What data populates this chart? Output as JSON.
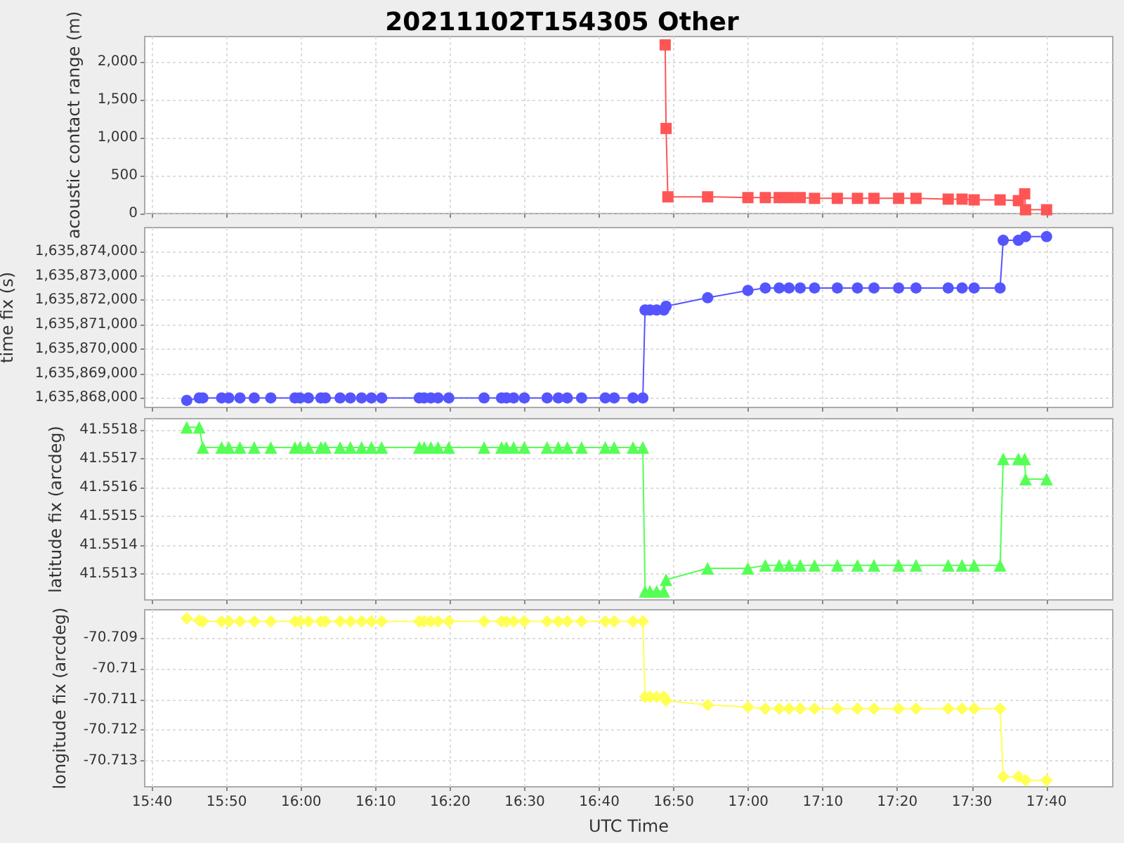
{
  "chart_data": [
    {
      "type": "line",
      "title": "20211102T154305 Other",
      "ylabel": "acoustic contact range (m)",
      "color": "#ff5555",
      "marker": "square",
      "grid": true,
      "tick_labels": "y",
      "x": [
        16.814,
        16.816,
        16.82,
        16.909,
        16.999,
        17.038,
        17.069,
        17.091,
        17.116,
        17.148,
        17.199,
        17.244,
        17.281,
        17.336,
        17.375,
        17.447,
        17.478,
        17.505,
        17.563,
        17.604,
        17.618,
        17.62,
        17.667
      ],
      "values": [
        2220,
        1120,
        220,
        220,
        210,
        210,
        210,
        210,
        210,
        200,
        200,
        200,
        200,
        200,
        200,
        190,
        190,
        180,
        180,
        170,
        260,
        50,
        50
      ],
      "xlim": [
        15.65,
        17.815
      ],
      "xticks": [
        15.6667,
        15.8333,
        16,
        16.1667,
        16.3333,
        16.5,
        16.6667,
        16.8333,
        17,
        17.1667,
        17.3333,
        17.5,
        17.6667
      ],
      "ylim": [
        0,
        2330
      ],
      "yticks": [
        0,
        500,
        {
          "value": 1000,
          "label": "1,000"
        },
        {
          "value": 1500,
          "label": "1,500"
        },
        {
          "value": 2000,
          "label": "2,000"
        }
      ]
    },
    {
      "type": "line",
      "ylabel": "time fix (s)",
      "color": "#5555ff",
      "marker": "circle",
      "grid": true,
      "tick_labels": "y",
      "x": [
        15.744,
        15.772,
        15.78,
        15.822,
        15.838,
        15.863,
        15.895,
        15.932,
        15.986,
        15.997,
        16.016,
        16.044,
        16.054,
        16.087,
        16.11,
        16.135,
        16.157,
        16.18,
        16.264,
        16.275,
        16.29,
        16.306,
        16.33,
        16.409,
        16.448,
        16.459,
        16.475,
        16.499,
        16.55,
        16.575,
        16.595,
        16.627,
        16.68,
        16.7,
        16.742,
        16.764,
        16.769,
        16.78,
        16.795,
        16.811,
        16.816,
        16.909,
        16.999,
        17.038,
        17.069,
        17.091,
        17.116,
        17.148,
        17.199,
        17.244,
        17.281,
        17.336,
        17.375,
        17.447,
        17.478,
        17.505,
        17.563,
        17.57,
        17.604,
        17.62,
        17.667
      ],
      "values": [
        1635867900,
        1635868000,
        1635868000,
        1635868000,
        1635868000,
        1635868000,
        1635868000,
        1635868000,
        1635868000,
        1635868000,
        1635868000,
        1635868000,
        1635868000,
        1635868000,
        1635868000,
        1635868000,
        1635868000,
        1635868000,
        1635868000,
        1635868000,
        1635868000,
        1635868000,
        1635868000,
        1635868000,
        1635868000,
        1635868000,
        1635868000,
        1635868000,
        1635868000,
        1635868000,
        1635868000,
        1635868000,
        1635868000,
        1635868000,
        1635868000,
        1635868000,
        1635871600,
        1635871600,
        1635871600,
        1635871600,
        1635871750,
        1635872100,
        1635872400,
        1635872500,
        1635872500,
        1635872500,
        1635872500,
        1635872500,
        1635872500,
        1635872500,
        1635872500,
        1635872500,
        1635872500,
        1635872500,
        1635872500,
        1635872500,
        1635872500,
        1635874450,
        1635874450,
        1635874600,
        1635874600
      ],
      "xlim": [
        15.65,
        17.815
      ],
      "xticks": [
        15.6667,
        15.8333,
        16,
        16.1667,
        16.3333,
        16.5,
        16.6667,
        16.8333,
        17,
        17.1667,
        17.3333,
        17.5,
        17.6667
      ],
      "ylim": [
        1635867610,
        1635874970
      ],
      "yticks": [
        {
          "value": 1635868000,
          "label": "1,635,868,000"
        },
        {
          "value": 1635869000,
          "label": "1,635,869,000"
        },
        {
          "value": 1635870000,
          "label": "1,635,870,000"
        },
        {
          "value": 1635871000,
          "label": "1,635,871,000"
        },
        {
          "value": 1635872000,
          "label": "1,635,872,000"
        },
        {
          "value": 1635873000,
          "label": "1,635,873,000"
        },
        {
          "value": 1635874000,
          "label": "1,635,874,000"
        }
      ]
    },
    {
      "type": "line",
      "ylabel": "latitude fix (arcdeg)",
      "color": "#55ff55",
      "marker": "triangle",
      "grid": true,
      "tick_labels": "y",
      "x": [
        15.744,
        15.772,
        15.78,
        15.822,
        15.838,
        15.863,
        15.895,
        15.932,
        15.986,
        15.997,
        16.016,
        16.044,
        16.054,
        16.087,
        16.11,
        16.135,
        16.157,
        16.18,
        16.264,
        16.275,
        16.29,
        16.306,
        16.33,
        16.409,
        16.448,
        16.459,
        16.475,
        16.499,
        16.55,
        16.575,
        16.595,
        16.627,
        16.68,
        16.7,
        16.742,
        16.764,
        16.769,
        16.78,
        16.795,
        16.811,
        16.816,
        16.909,
        16.999,
        17.038,
        17.069,
        17.091,
        17.116,
        17.148,
        17.199,
        17.244,
        17.281,
        17.336,
        17.375,
        17.447,
        17.478,
        17.505,
        17.563,
        17.57,
        17.604,
        17.618,
        17.62,
        17.667
      ],
      "values": [
        41.55181,
        41.55181,
        41.55174,
        41.55174,
        41.55174,
        41.55174,
        41.55174,
        41.55174,
        41.55174,
        41.55174,
        41.55174,
        41.55174,
        41.55174,
        41.55174,
        41.55174,
        41.55174,
        41.55174,
        41.55174,
        41.55174,
        41.55174,
        41.55174,
        41.55174,
        41.55174,
        41.55174,
        41.55174,
        41.55174,
        41.55174,
        41.55174,
        41.55174,
        41.55174,
        41.55174,
        41.55174,
        41.55174,
        41.55174,
        41.55174,
        41.55174,
        41.55124,
        41.55124,
        41.55124,
        41.55124,
        41.55128,
        41.55132,
        41.55132,
        41.55133,
        41.55133,
        41.55133,
        41.55133,
        41.55133,
        41.55133,
        41.55133,
        41.55133,
        41.55133,
        41.55133,
        41.55133,
        41.55133,
        41.55133,
        41.55133,
        41.5517,
        41.5517,
        41.5517,
        41.55163,
        41.55163
      ],
      "xlim": [
        15.65,
        17.815
      ],
      "xticks": [
        15.6667,
        15.8333,
        16,
        16.1667,
        16.3333,
        16.5,
        16.6667,
        16.8333,
        17,
        17.1667,
        17.3333,
        17.5,
        17.6667
      ],
      "ylim": [
        41.55121,
        41.55184
      ],
      "yticks": [
        41.5513,
        41.5514,
        41.5515,
        41.5516,
        41.5517,
        41.5518
      ]
    },
    {
      "type": "line",
      "xlabel": "UTC Time",
      "ylabel": "longitude fix (arcdeg)",
      "color": "#ffff55",
      "marker": "diamond",
      "grid": true,
      "x": [
        15.744,
        15.772,
        15.78,
        15.822,
        15.838,
        15.863,
        15.895,
        15.932,
        15.986,
        15.997,
        16.016,
        16.044,
        16.054,
        16.087,
        16.11,
        16.135,
        16.157,
        16.18,
        16.264,
        16.275,
        16.29,
        16.306,
        16.33,
        16.409,
        16.448,
        16.459,
        16.475,
        16.499,
        16.55,
        16.575,
        16.595,
        16.627,
        16.68,
        16.7,
        16.742,
        16.764,
        16.769,
        16.78,
        16.795,
        16.811,
        16.816,
        16.909,
        16.999,
        17.038,
        17.069,
        17.091,
        17.116,
        17.148,
        17.199,
        17.244,
        17.281,
        17.336,
        17.375,
        17.447,
        17.478,
        17.505,
        17.563,
        17.57,
        17.604,
        17.62,
        17.667
      ],
      "values": [
        -70.70836,
        -70.70843,
        -70.70846,
        -70.70846,
        -70.70846,
        -70.70846,
        -70.70846,
        -70.70846,
        -70.70846,
        -70.70846,
        -70.70846,
        -70.70846,
        -70.70846,
        -70.70846,
        -70.70846,
        -70.70846,
        -70.70846,
        -70.70846,
        -70.70846,
        -70.70846,
        -70.70846,
        -70.70846,
        -70.70846,
        -70.70846,
        -70.70846,
        -70.70846,
        -70.70846,
        -70.70846,
        -70.70846,
        -70.70846,
        -70.70846,
        -70.70846,
        -70.70846,
        -70.70846,
        -70.70846,
        -70.70846,
        -70.71092,
        -70.71092,
        -70.71092,
        -70.71092,
        -70.71104,
        -70.71118,
        -70.71125,
        -70.7113,
        -70.7113,
        -70.7113,
        -70.7113,
        -70.7113,
        -70.7113,
        -70.7113,
        -70.7113,
        -70.7113,
        -70.7113,
        -70.7113,
        -70.7113,
        -70.7113,
        -70.7113,
        -70.71352,
        -70.71352,
        -70.71364,
        -70.71364
      ],
      "xlim": [
        15.65,
        17.815
      ],
      "xticks": [
        {
          "value": 15.6667,
          "label": "15:40"
        },
        {
          "value": 15.8333,
          "label": "15:50"
        },
        {
          "value": 16,
          "label": "16:00"
        },
        {
          "value": 16.1667,
          "label": "16:10"
        },
        {
          "value": 16.3333,
          "label": "16:20"
        },
        {
          "value": 16.5,
          "label": "16:30"
        },
        {
          "value": 16.6667,
          "label": "16:40"
        },
        {
          "value": 16.8333,
          "label": "16:50"
        },
        {
          "value": 17,
          "label": "17:00"
        },
        {
          "value": 17.1667,
          "label": "17:10"
        },
        {
          "value": 17.3333,
          "label": "17:20"
        },
        {
          "value": 17.5,
          "label": "17:30"
        },
        {
          "value": 17.6667,
          "label": "17:40"
        }
      ],
      "ylim": [
        -70.71385,
        -70.70808
      ],
      "yticks": [
        -70.713,
        -70.712,
        -70.711,
        -70.71,
        -70.709
      ]
    }
  ]
}
